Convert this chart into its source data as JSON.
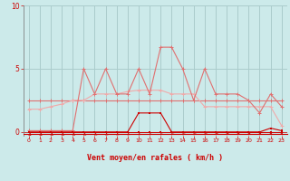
{
  "bg_color": "#cceaea",
  "grid_color": "#aacccc",
  "x_labels": [
    "0",
    "1",
    "2",
    "3",
    "4",
    "5",
    "6",
    "7",
    "8",
    "9",
    "10",
    "11",
    "12",
    "13",
    "14",
    "15",
    "16",
    "17",
    "18",
    "19",
    "20",
    "21",
    "22",
    "23"
  ],
  "xlim": [
    -0.5,
    23.5
  ],
  "ylim": [
    -0.3,
    10
  ],
  "yticks": [
    0,
    5,
    10
  ],
  "xlabel": "Vent moyen/en rafales ( km/h )",
  "xlabel_color": "#cc0000",
  "tick_color": "#cc0000",
  "line_color_dark": "#cc0000",
  "line_color_mid": "#e07070",
  "line_color_light": "#f0aaaa",
  "series_spiky": [
    0.1,
    0.1,
    0.1,
    0.1,
    0.1,
    5.0,
    3.0,
    5.0,
    3.0,
    3.0,
    5.0,
    3.0,
    6.7,
    6.7,
    5.0,
    2.5,
    5.0,
    3.0,
    3.0,
    3.0,
    2.5,
    1.5,
    3.0,
    2.0
  ],
  "series_flat": [
    2.5,
    2.5,
    2.5,
    2.5,
    2.5,
    2.5,
    2.5,
    2.5,
    2.5,
    2.5,
    2.5,
    2.5,
    2.5,
    2.5,
    2.5,
    2.5,
    2.5,
    2.5,
    2.5,
    2.5,
    2.5,
    2.5,
    2.5,
    2.5
  ],
  "series_decrease": [
    1.8,
    1.8,
    2.0,
    2.2,
    2.5,
    2.5,
    3.0,
    3.0,
    3.0,
    3.2,
    3.3,
    3.3,
    3.3,
    3.0,
    3.0,
    3.0,
    2.0,
    2.0,
    2.0,
    2.0,
    2.0,
    2.0,
    2.0,
    0.5
  ],
  "series_low_bump": [
    0.0,
    0.0,
    0.0,
    0.0,
    0.0,
    0.0,
    0.0,
    0.0,
    0.0,
    0.0,
    1.5,
    1.5,
    1.5,
    0.0,
    0.0,
    0.0,
    0.0,
    0.0,
    0.0,
    0.0,
    0.0,
    0.0,
    0.3,
    0.1
  ],
  "series_zero": [
    0.0,
    0.0,
    0.0,
    0.0,
    0.0,
    0.0,
    0.0,
    0.0,
    0.0,
    0.0,
    0.0,
    0.0,
    0.0,
    0.0,
    0.0,
    0.0,
    0.0,
    0.0,
    0.0,
    0.0,
    0.0,
    0.0,
    0.0,
    0.0
  ]
}
